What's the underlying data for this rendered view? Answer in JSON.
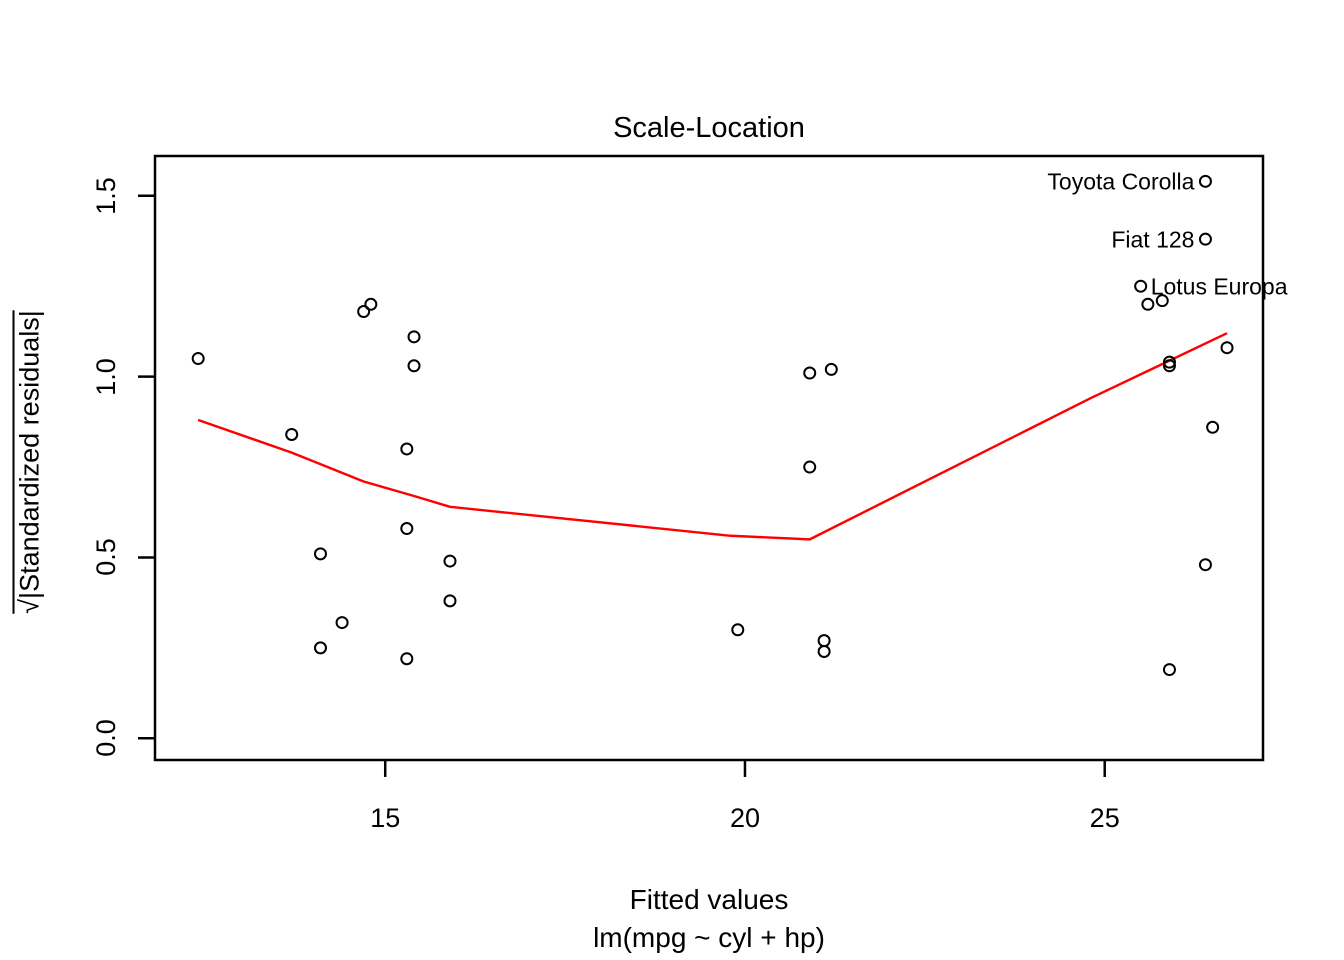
{
  "chart_data": {
    "type": "scatter",
    "title": "Scale-Location",
    "xlabel": "Fitted values",
    "xlabel_sub": "lm(mpg ~ cyl + hp)",
    "ylabel": "√|Standardized residuals|",
    "xlim": [
      11.8,
      27.2
    ],
    "ylim": [
      -0.06,
      1.61
    ],
    "x_ticks": [
      15,
      20,
      25
    ],
    "x_tick_labels": [
      "15",
      "20",
      "25"
    ],
    "y_ticks": [
      0.0,
      0.5,
      1.0,
      1.5
    ],
    "y_tick_labels": [
      "0.0",
      "0.5",
      "1.0",
      "1.5"
    ],
    "grid": false,
    "legend": null,
    "point_color": "#000000",
    "smoother_color": "#FF0000",
    "points": [
      [
        12.4,
        1.05
      ],
      [
        13.7,
        0.84
      ],
      [
        14.1,
        0.51
      ],
      [
        14.1,
        0.25
      ],
      [
        14.4,
        0.32
      ],
      [
        14.7,
        1.18
      ],
      [
        14.8,
        1.2
      ],
      [
        15.4,
        1.11
      ],
      [
        15.4,
        1.03
      ],
      [
        15.3,
        0.8
      ],
      [
        15.3,
        0.58
      ],
      [
        15.3,
        0.22
      ],
      [
        15.9,
        0.49
      ],
      [
        15.9,
        0.38
      ],
      [
        19.9,
        0.3
      ],
      [
        20.9,
        1.01
      ],
      [
        20.9,
        0.75
      ],
      [
        21.2,
        1.02
      ],
      [
        21.1,
        0.27
      ],
      [
        21.1,
        0.24
      ],
      [
        25.5,
        1.25
      ],
      [
        25.6,
        1.2
      ],
      [
        25.8,
        1.21
      ],
      [
        25.9,
        1.04
      ],
      [
        25.9,
        1.03
      ],
      [
        26.7,
        1.08
      ],
      [
        26.5,
        0.86
      ],
      [
        26.4,
        0.48
      ],
      [
        25.9,
        0.19
      ],
      [
        26.4,
        1.54
      ],
      [
        26.4,
        1.38
      ]
    ],
    "labeled_points": [
      {
        "label": "Toyota Corolla",
        "x": 26.4,
        "y": 1.54,
        "side": "left"
      },
      {
        "label": "Fiat 128",
        "x": 26.4,
        "y": 1.38,
        "side": "left"
      },
      {
        "label": "Lotus Europa",
        "x": 25.5,
        "y": 1.25,
        "side": "right"
      }
    ],
    "smoother": [
      [
        12.4,
        0.88
      ],
      [
        13.7,
        0.79
      ],
      [
        14.7,
        0.71
      ],
      [
        15.4,
        0.67
      ],
      [
        15.9,
        0.64
      ],
      [
        19.8,
        0.56
      ],
      [
        20.9,
        0.55
      ],
      [
        23.9,
        0.85
      ],
      [
        24.8,
        0.94
      ],
      [
        26.7,
        1.12
      ]
    ]
  }
}
